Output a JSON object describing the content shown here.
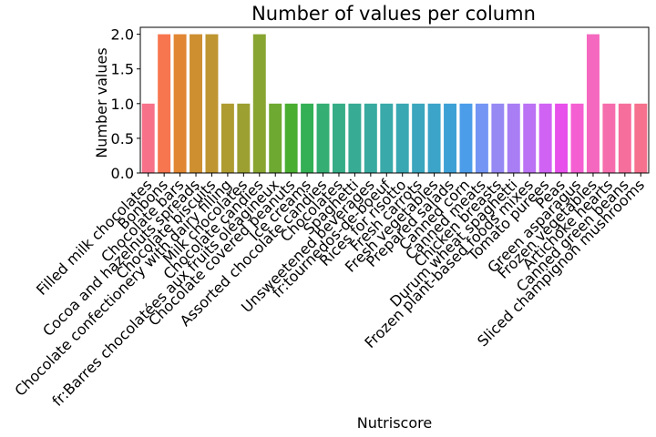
{
  "chart_data": {
    "type": "bar",
    "title": "Number of values per column",
    "xlabel": "Nutriscore",
    "ylabel": "Number values",
    "ylim": [
      0,
      2.1
    ],
    "yticks": [
      "0.0",
      "0.5",
      "1.0",
      "1.5",
      "2.0"
    ],
    "ytick_values": [
      0,
      0.5,
      1.0,
      1.5,
      2.0
    ],
    "grid": false,
    "categories": [
      "Filled milk chocolates",
      "Bonbons",
      "Chocolate bars",
      "Cocoa and hazelnuts spreads",
      "Chocolate biscuits",
      "Chocolate confectionery with dairy filling",
      "Milk chocolates",
      "Chocolate candies",
      "fr:Barres chocolatées aux fruits oléagineux",
      "Chocolate covered peanuts",
      "Ice creams",
      "Assorted chocolate candies",
      "Chocolates",
      "Spaghetti",
      "Unsweetened beverages",
      "fr:tournedos-de-boeuf",
      "Rices for risotto",
      "Fresh carrots",
      "Fresh vegetables",
      "Prepared salads",
      "Canned corn",
      "Canned meats",
      "Chicken breasts",
      "Durum wheat spaghetti",
      "Frozen plant-based foods mixes",
      "Tomato purees",
      "Peas",
      "Green asparagus",
      "Frozen vegetables",
      "Artichoke hearts",
      "Canned green beans",
      "Sliced champignon mushrooms"
    ],
    "values": [
      1,
      2,
      2,
      2,
      2,
      1,
      1,
      2,
      1,
      1,
      1,
      1,
      1,
      1,
      1,
      1,
      1,
      1,
      1,
      1,
      1,
      1,
      1,
      1,
      1,
      1,
      1,
      1,
      2,
      1,
      1,
      1
    ],
    "colors": [
      "#f77189",
      "#f7754f",
      "#e18632",
      "#ce8f31",
      "#be9530",
      "#ae9c31",
      "#9ca031",
      "#88a531",
      "#6ea931",
      "#4aae31",
      "#33b055",
      "#35ae74",
      "#36ad86",
      "#37ab94",
      "#38aa9f",
      "#39a9a9",
      "#3aa8b3",
      "#3ba6bd",
      "#3ca4c8",
      "#3ea1d5",
      "#4b9dea",
      "#7495f4",
      "#9689f4",
      "#a97ef4",
      "#bb72f4",
      "#d063f4",
      "#e750ea",
      "#f45fd2",
      "#f568bf",
      "#f56dac",
      "#f66f9c",
      "#f6718e"
    ]
  }
}
